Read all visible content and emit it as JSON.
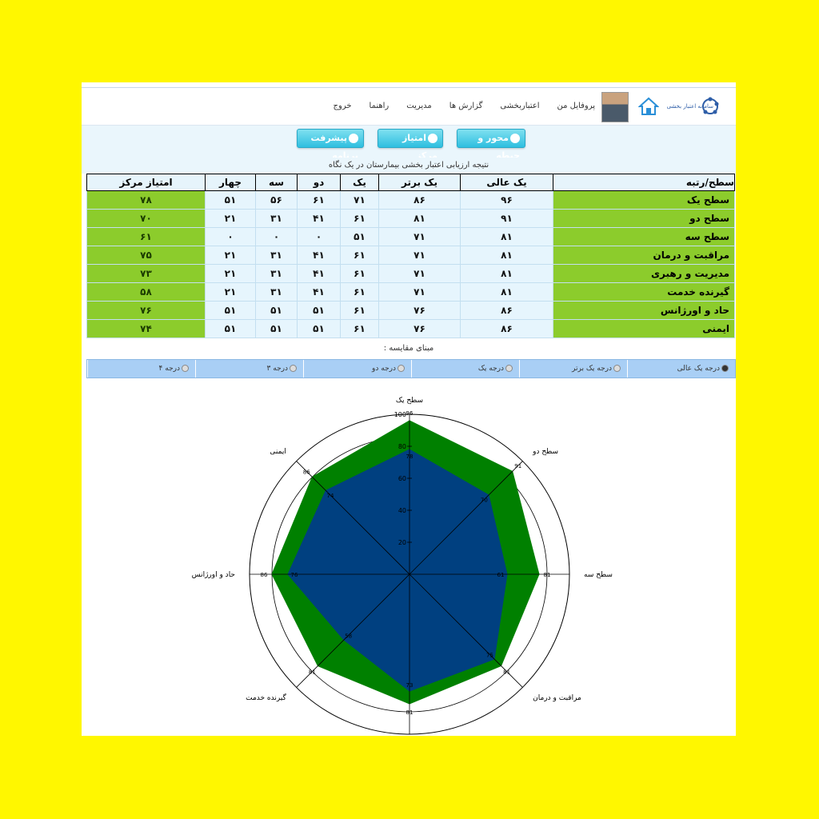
{
  "header": {
    "logo_text": "سامانه اعتبار بخشی",
    "nav": [
      "پروفایل من",
      "اعتباربخشی",
      "گزارش ها",
      "مدیریت",
      "راهنما",
      "خروج"
    ]
  },
  "buttons": [
    "محور و حیطه",
    "امتیاز مرکز",
    "پیشرفت برنامه"
  ],
  "caption": "نتیجه ارزیابی اعتبار بخشی بیمارستان در یک نگاه",
  "table": {
    "headers": [
      "سطح/رتبه",
      "یک عالی",
      "یک برتر",
      "یک",
      "دو",
      "سه",
      "چهار",
      "امتیاز مرکز"
    ],
    "rows": [
      {
        "name": "سطح یک",
        "cells": [
          "۹۶",
          "۸۶",
          "۷۱",
          "۶۱",
          "۵۶",
          "۵۱"
        ],
        "score": "۷۸"
      },
      {
        "name": "سطح دو",
        "cells": [
          "۹۱",
          "۸۱",
          "۶۱",
          "۴۱",
          "۳۱",
          "۲۱"
        ],
        "score": "۷۰"
      },
      {
        "name": "سطح سه",
        "cells": [
          "۸۱",
          "۷۱",
          "۵۱",
          "۰",
          "۰",
          "۰"
        ],
        "score": "۶۱"
      },
      {
        "name": "مراقبت و درمان",
        "cells": [
          "۸۱",
          "۷۱",
          "۶۱",
          "۴۱",
          "۳۱",
          "۲۱"
        ],
        "score": "۷۵"
      },
      {
        "name": "مدیریت و رهبری",
        "cells": [
          "۸۱",
          "۷۱",
          "۶۱",
          "۴۱",
          "۳۱",
          "۲۱"
        ],
        "score": "۷۳"
      },
      {
        "name": "گیرنده خدمت",
        "cells": [
          "۸۱",
          "۷۱",
          "۶۱",
          "۴۱",
          "۳۱",
          "۲۱"
        ],
        "score": "۵۸"
      },
      {
        "name": "حاد و اورژانس",
        "cells": [
          "۸۶",
          "۷۶",
          "۶۱",
          "۵۱",
          "۵۱",
          "۵۱"
        ],
        "score": "۷۶"
      },
      {
        "name": "ایمنی",
        "cells": [
          "۸۶",
          "۷۶",
          "۶۱",
          "۵۱",
          "۵۱",
          "۵۱"
        ],
        "score": "۷۴"
      }
    ]
  },
  "comparison_label": "مبنای مقایسه :",
  "radio_options": [
    "درجه یک عالی",
    "درجه یک برتر",
    "درجه یک",
    "درجه دو",
    "درجه ۳",
    "درجه ۴"
  ],
  "radio_selected": 0,
  "chart_data": {
    "type": "radar",
    "categories": [
      "سطح یک",
      "سطح دو",
      "سطح سه",
      "مراقبت و درمان",
      "",
      "گیرنده خدمت",
      "حاد و اورژانس",
      "ایمنی"
    ],
    "axis_ticks": [
      20,
      40,
      60,
      80,
      100
    ],
    "ylim": [
      0,
      100
    ],
    "series": [
      {
        "values": [
          96,
          91,
          81,
          81,
          81,
          81,
          86,
          86
        ],
        "color": "#008000"
      },
      {
        "values": [
          78,
          70,
          61,
          75,
          73,
          58,
          76,
          74
        ],
        "color": "#004080"
      }
    ],
    "grid": true
  }
}
